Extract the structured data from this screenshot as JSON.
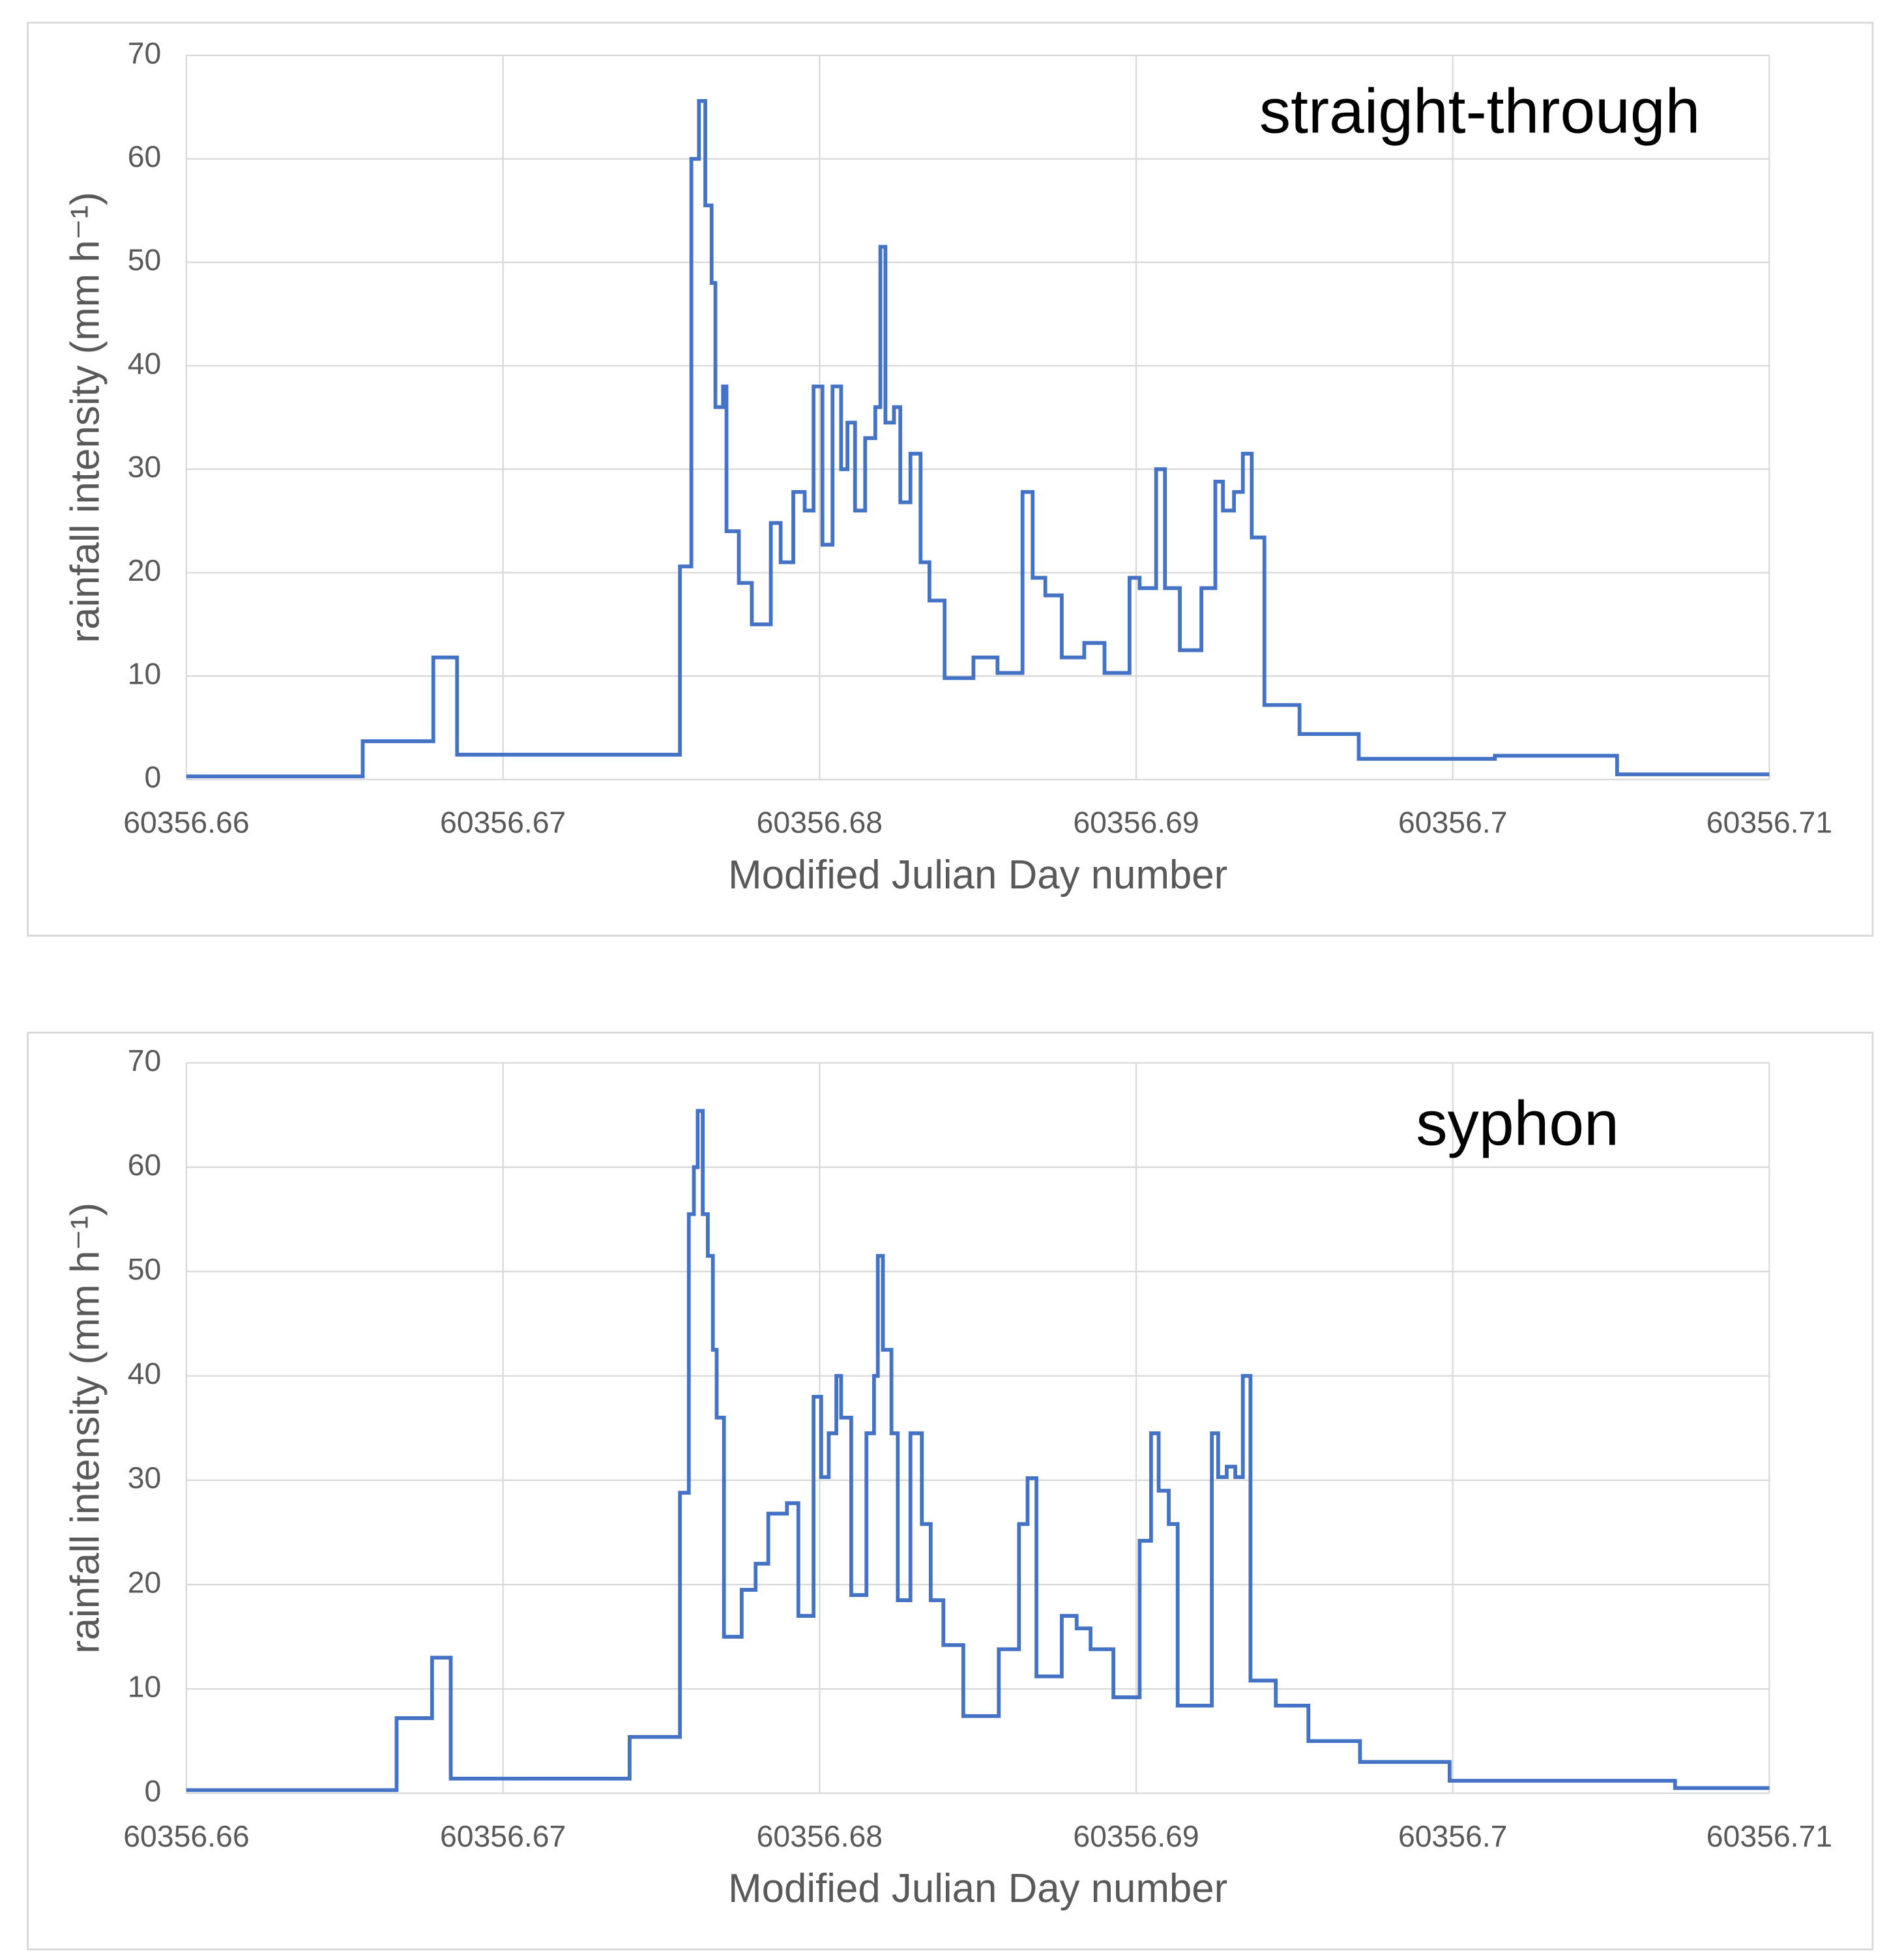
{
  "chart_data": [
    {
      "type": "step",
      "annotation": "straight-through",
      "x_label": "Modified Julian Day number",
      "y_label": "rainfall intensity (mm h⁻¹)",
      "color": "#4472c4",
      "grid": true,
      "xlim": [
        60356.66,
        60356.71
      ],
      "xticks": [
        60356.66,
        60356.67,
        60356.68,
        60356.69,
        60356.7,
        60356.71
      ],
      "ylim": [
        0,
        70
      ],
      "yticks": [
        0,
        10,
        20,
        30,
        40,
        50,
        60,
        70
      ],
      "x": [
        60356.66,
        60356.66557,
        60356.6678,
        60356.66855,
        60356.67559,
        60356.67595,
        60356.67619,
        60356.67639,
        60356.67659,
        60356.67671,
        60356.67695,
        60356.67706,
        60356.67745,
        60356.67786,
        60356.67846,
        60356.67877,
        60356.67917,
        60356.67953,
        60356.67981,
        60356.68009,
        60356.68041,
        60356.68068,
        60356.68088,
        60356.68112,
        60356.68144,
        60356.68176,
        60356.68192,
        60356.68208,
        60356.68235,
        60356.68255,
        60356.68287,
        60356.68319,
        60356.68347,
        60356.68395,
        60356.68486,
        60356.68562,
        60356.68641,
        60356.68673,
        60356.68713,
        60356.68765,
        60356.68836,
        60356.689,
        60356.68979,
        60356.69011,
        60356.69063,
        60356.69091,
        60356.69138,
        60356.69206,
        60356.6925,
        60356.69274,
        60356.69309,
        60356.69337,
        60356.69365,
        60356.69405,
        60356.69516,
        60356.69703,
        60356.70133,
        60356.70519
      ],
      "values": [
        0.3,
        3.7,
        11.8,
        2.4,
        20.6,
        60,
        65.6,
        55.5,
        48,
        36,
        38,
        24,
        19,
        15,
        24.8,
        21,
        27.8,
        26,
        38,
        22.7,
        38,
        30,
        34.5,
        26,
        33,
        36,
        51.5,
        34.5,
        36,
        26.8,
        31.5,
        21,
        17.3,
        9.8,
        11.8,
        10.3,
        27.8,
        19.5,
        17.8,
        11.8,
        13.2,
        10.3,
        19.5,
        18.5,
        30,
        18.5,
        12.5,
        18.5,
        28.8,
        26,
        27.8,
        31.5,
        23.4,
        7.2,
        4.4,
        2,
        2.3,
        0.5
      ]
    },
    {
      "type": "step",
      "annotation": "syphon",
      "x_label": "Modified Julian Day number",
      "y_label": "rainfall intensity (mm h⁻¹)",
      "color": "#4472c4",
      "grid": true,
      "xlim": [
        60356.66,
        60356.71
      ],
      "xticks": [
        60356.66,
        60356.67,
        60356.68,
        60356.69,
        60356.7,
        60356.71
      ],
      "ylim": [
        0,
        70
      ],
      "yticks": [
        0,
        10,
        20,
        30,
        40,
        50,
        60,
        70
      ],
      "x": [
        60356.66,
        60356.66664,
        60356.66776,
        60356.66835,
        60356.674,
        60356.67559,
        60356.67587,
        60356.67603,
        60356.67615,
        60356.67631,
        60356.67647,
        60356.67663,
        60356.67675,
        60356.67698,
        60356.67754,
        60356.67798,
        60356.67838,
        60356.67897,
        60356.67933,
        60356.67981,
        60356.68005,
        60356.68029,
        60356.68053,
        60356.68068,
        60356.681,
        60356.68148,
        60356.68172,
        60356.68184,
        60356.682,
        60356.68227,
        60356.68247,
        60356.68287,
        60356.68323,
        60356.68351,
        60356.68391,
        60356.68454,
        60356.68566,
        60356.6863,
        60356.68657,
        60356.68685,
        60356.68765,
        60356.68812,
        60356.68856,
        60356.68928,
        60356.69011,
        60356.69047,
        60356.69071,
        60356.69103,
        60356.69131,
        60356.69239,
        60356.69259,
        60356.69286,
        60356.69313,
        60356.69337,
        60356.69361,
        60356.69441,
        60356.69544,
        60356.69707,
        60356.6999,
        60356.70702
      ],
      "values": [
        0.3,
        7.2,
        13,
        1.4,
        5.4,
        28.8,
        55.5,
        60,
        65.4,
        55.5,
        51.5,
        42.5,
        36,
        15,
        19.5,
        22,
        26.8,
        27.8,
        17,
        38,
        30.3,
        34.5,
        40,
        36,
        19,
        34.5,
        40,
        51.5,
        42.5,
        34.5,
        18.5,
        34.5,
        25.8,
        18.5,
        14.2,
        7.4,
        13.8,
        25.8,
        30.2,
        11.2,
        17,
        15.8,
        13.8,
        9.2,
        24.2,
        34.5,
        29,
        25.8,
        8.4,
        34.5,
        30.3,
        31.3,
        30.3,
        40,
        10.8,
        8.4,
        5,
        3,
        1.2,
        0.5
      ]
    }
  ]
}
